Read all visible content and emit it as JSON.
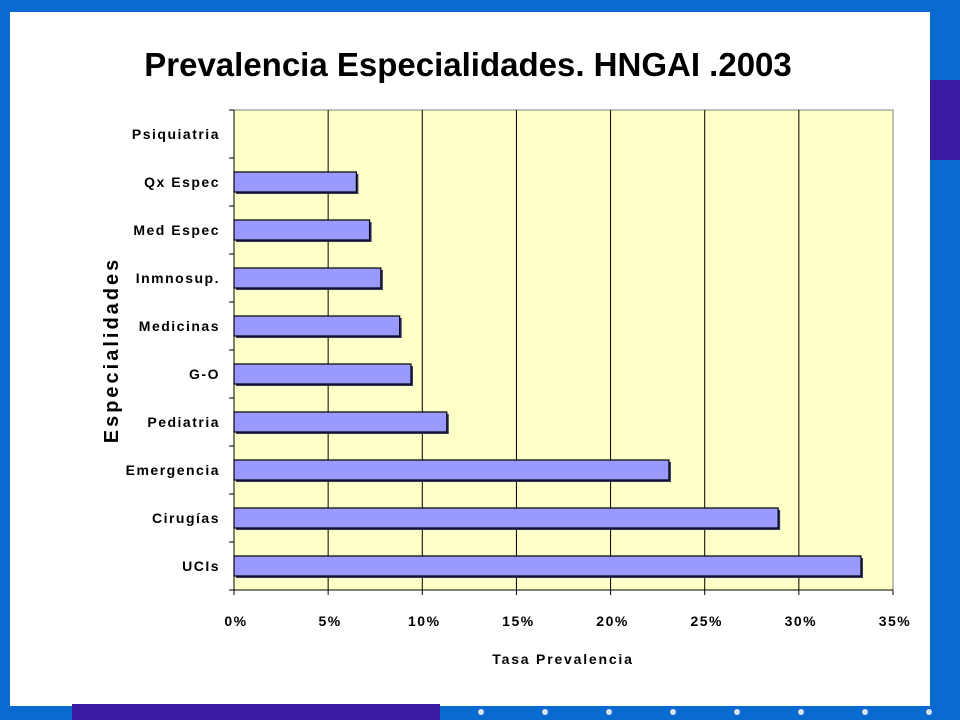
{
  "chart_data": {
    "type": "bar",
    "orientation": "horizontal",
    "title": "Prevalencia Especialidades. HNGAI .2003",
    "xlabel": "Tasa Prevalencia",
    "ylabel": "Especialidades",
    "categories": [
      "Psiquiatria",
      "Qx Espec",
      "Med Espec",
      "Inmnosup.",
      "Medicinas",
      "G-O",
      "Pediatria",
      "Emergencia",
      "Cirugías",
      "UCIs"
    ],
    "values": [
      0,
      6.5,
      7.2,
      7.8,
      8.8,
      9.4,
      11.3,
      23.1,
      28.9,
      33.3
    ],
    "xlim": [
      0,
      35
    ],
    "xticks": [
      0,
      5,
      10,
      15,
      20,
      25,
      30,
      35
    ],
    "xtick_labels": [
      "0%",
      "5%",
      "10%",
      "15%",
      "20%",
      "25%",
      "30%",
      "35%"
    ],
    "grid": true,
    "legend": "none",
    "plot_background": "#ffffc8",
    "bar_color": "#9999ff",
    "bar_edge_color": "#000000"
  },
  "colors": {
    "slide_background": "#0a6ad0",
    "accent": "#3a1aa0",
    "panel": "#ffffff"
  }
}
